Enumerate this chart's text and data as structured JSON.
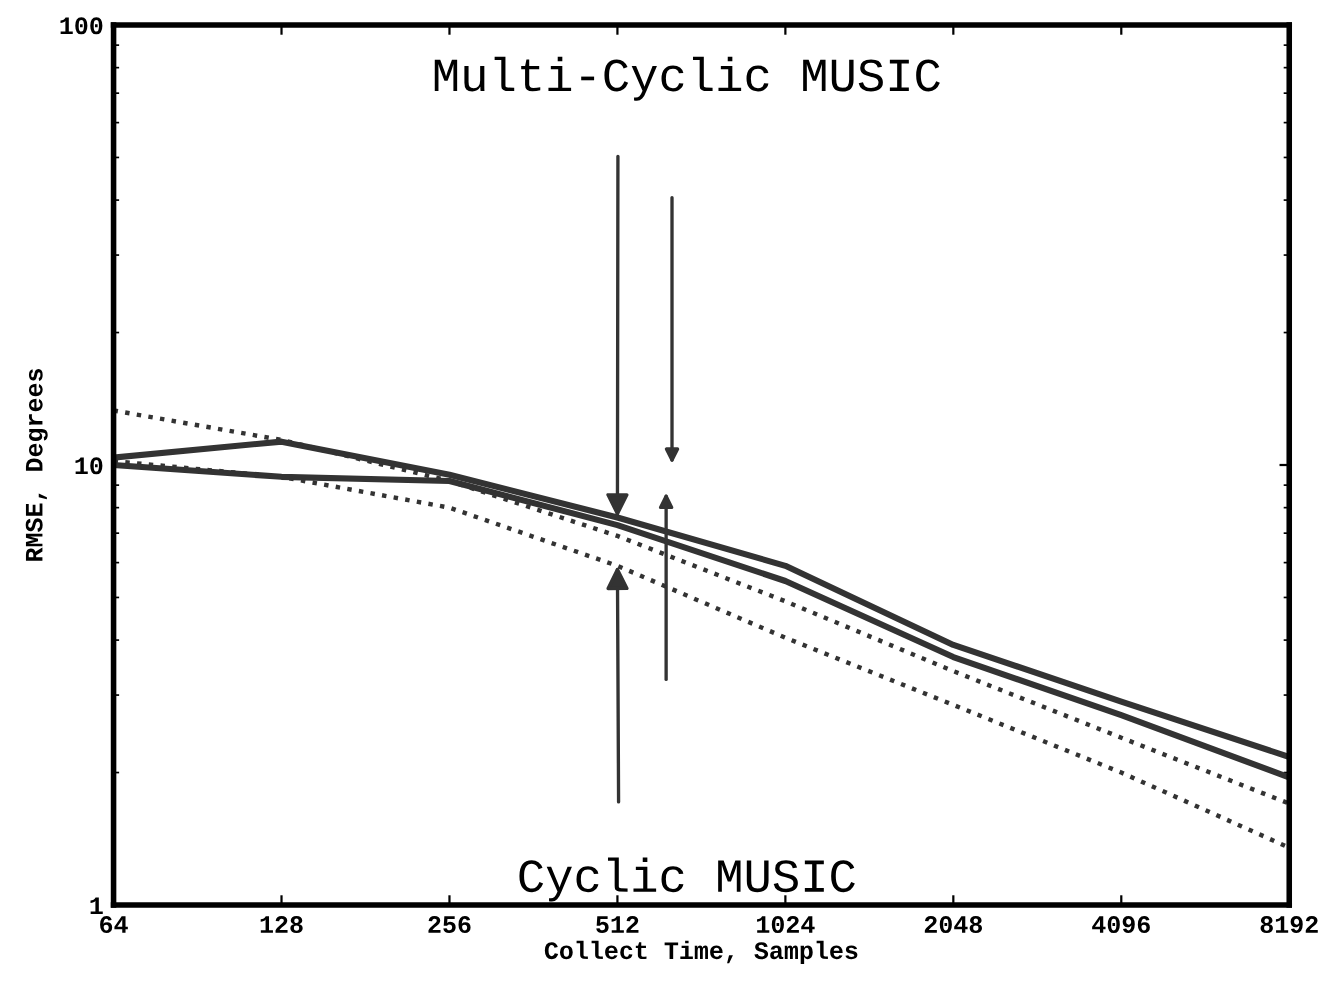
{
  "chart_data": {
    "type": "line",
    "xlabel": "Collect Time, Samples",
    "ylabel": "RMSE, Degrees",
    "x": [
      64,
      128,
      256,
      512,
      1024,
      2048,
      4096,
      8192
    ],
    "series": [
      {
        "color": "#333333",
        "line_style": "solid",
        "values": [
          10.4,
          11.3,
          9.5,
          7.6,
          5.9,
          3.9,
          2.9,
          2.17
        ]
      },
      {
        "color": "#333333",
        "line_style": "solid",
        "values": [
          10.0,
          9.4,
          9.2,
          7.3,
          5.45,
          3.66,
          2.7,
          1.95
        ]
      },
      {
        "color": "#333333",
        "line_style": "dotted",
        "values": [
          13.3,
          11.4,
          9.2,
          6.9,
          4.9,
          3.4,
          2.4,
          1.7
        ]
      },
      {
        "color": "#333333",
        "line_style": "dotted",
        "values": [
          10.2,
          9.4,
          8.0,
          5.9,
          4.05,
          2.85,
          2.0,
          1.35
        ]
      }
    ],
    "log": "xy",
    "xlim": [
      64,
      8192
    ],
    "ylim": [
      1,
      100
    ],
    "xticks": [
      64,
      128,
      256,
      512,
      1024,
      2048,
      4096,
      8192
    ],
    "yticks": [
      1,
      10,
      100
    ],
    "annotations": [
      {
        "text": "Multi-Cyclic MUSIC",
        "x": 512,
        "y": 7.6
      },
      {
        "text": "Cyclic MUSIC",
        "x": 512,
        "y": 5.9
      }
    ],
    "grid": false,
    "legend": false,
    "marker": "none"
  }
}
